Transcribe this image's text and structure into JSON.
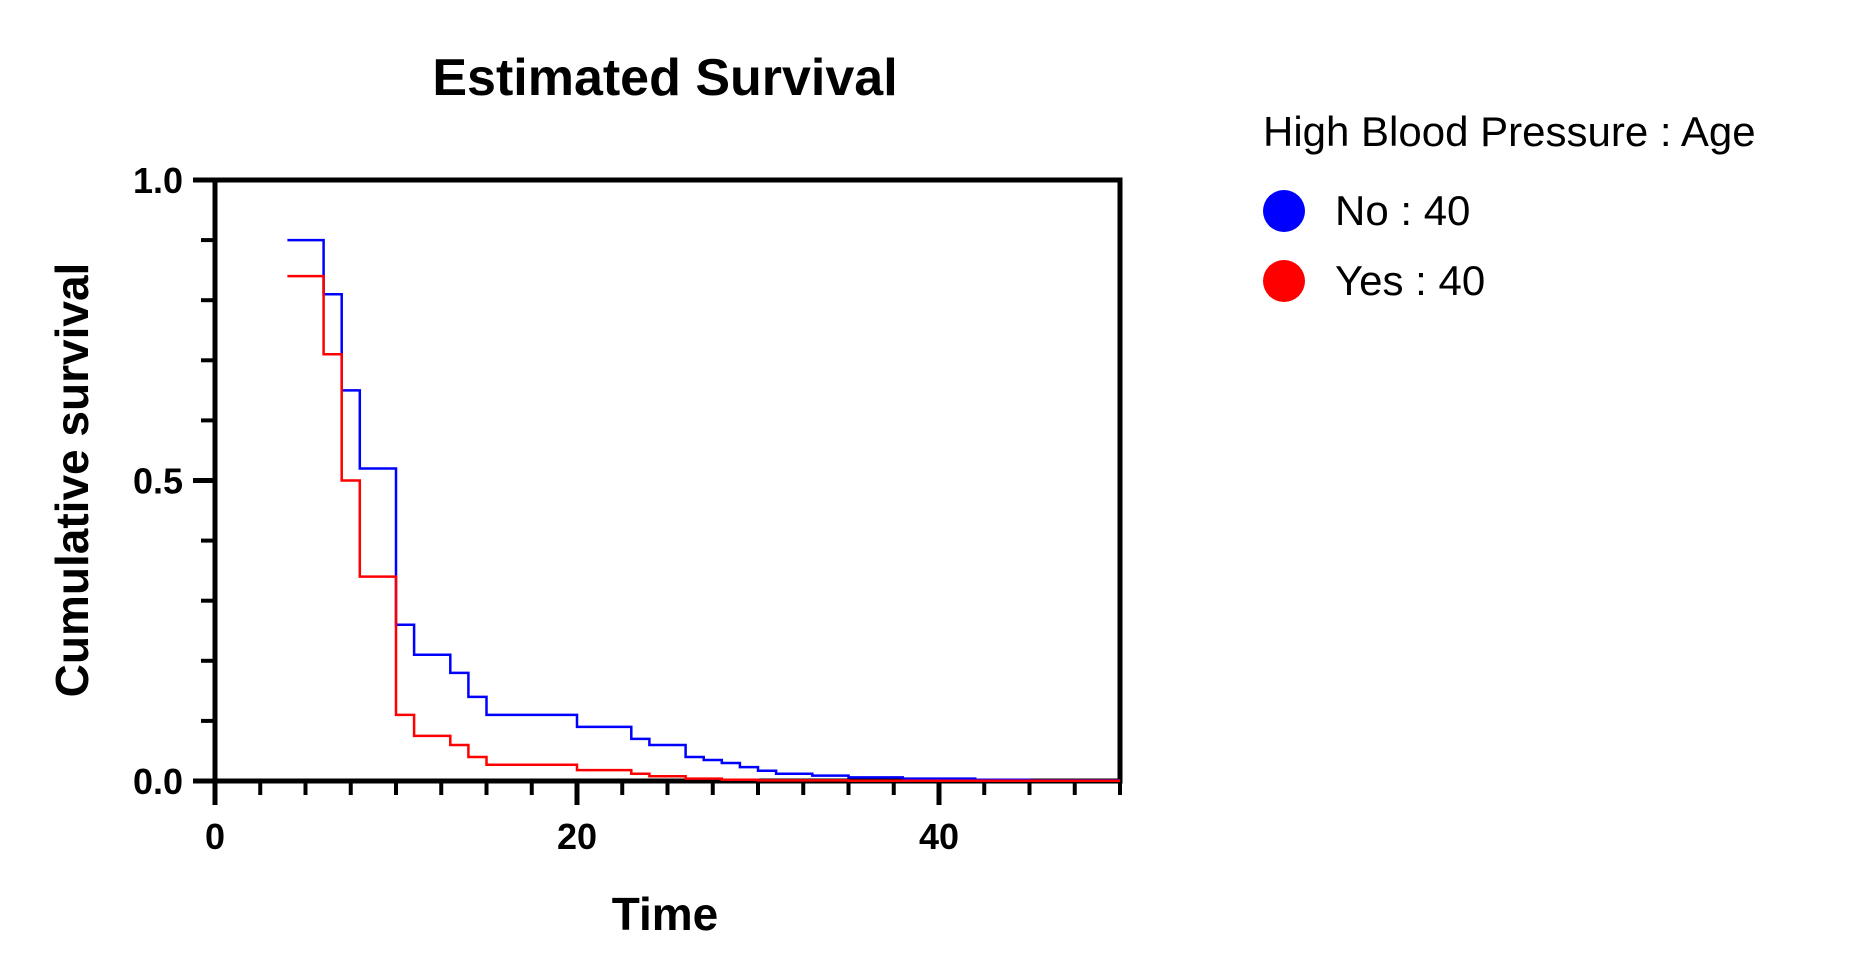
{
  "chart_data": {
    "type": "line",
    "title": "Estimated Survival",
    "xlabel": "Time",
    "ylabel": "Cumulative survival",
    "xlim": [
      0,
      50
    ],
    "ylim": [
      0,
      1
    ],
    "xticks": [
      0,
      20,
      40
    ],
    "xtick_labels": [
      "0",
      "20",
      "40"
    ],
    "yticks": [
      0,
      0.5,
      1
    ],
    "ytick_labels": [
      "0.0",
      "0.5",
      "1.0"
    ],
    "grid": false,
    "step": true,
    "legend": {
      "title": "High Blood Pressure : Age",
      "position": "right"
    },
    "series": [
      {
        "name": "No : 40",
        "color": "#0000ff",
        "x": [
          4,
          6,
          7,
          8,
          10,
          11,
          13,
          14,
          15,
          18,
          20,
          23,
          24,
          26,
          27,
          28,
          29,
          30,
          31,
          33,
          35,
          38,
          42,
          45,
          50
        ],
        "y": [
          0.9,
          0.81,
          0.65,
          0.52,
          0.26,
          0.21,
          0.18,
          0.14,
          0.11,
          0.11,
          0.09,
          0.07,
          0.06,
          0.04,
          0.035,
          0.03,
          0.023,
          0.017,
          0.012,
          0.009,
          0.006,
          0.004,
          0.002,
          0.001,
          0.001
        ]
      },
      {
        "name": "Yes : 40",
        "color": "#ff0000",
        "x": [
          4,
          6,
          7,
          8,
          10,
          11,
          13,
          14,
          15,
          20,
          23,
          24,
          26,
          28,
          30,
          35,
          50
        ],
        "y": [
          0.84,
          0.71,
          0.5,
          0.34,
          0.11,
          0.075,
          0.06,
          0.04,
          0.027,
          0.018,
          0.012,
          0.008,
          0.004,
          0.002,
          0.001,
          0.0005,
          0.0005
        ]
      }
    ]
  }
}
